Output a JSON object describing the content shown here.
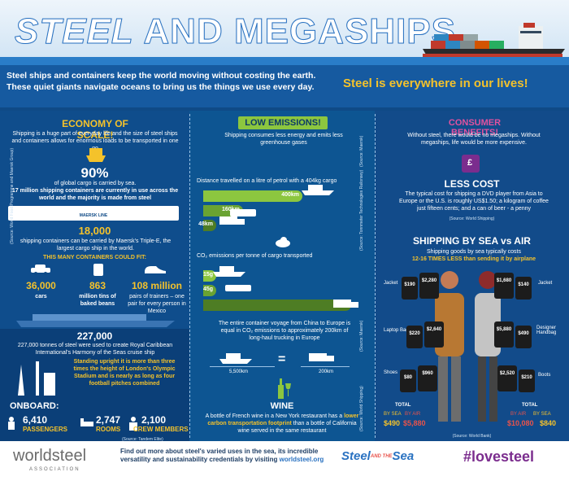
{
  "header": {
    "title_a": "STEEL",
    "title_b": " AND MEGASHIPS"
  },
  "intro": {
    "text": "Steel ships and containers keep the world moving without costing the earth. These quiet giants navigate oceans to bring us the things we use every day.",
    "tagline": "Steel is everywhere in our lives!"
  },
  "economy": {
    "heading": "ECONOMY OF SCALE!",
    "lead": "Shipping is a huge part of everyday life and the size of steel ships and containers allows for enormous loads to be transported in one go",
    "pct": "90%",
    "pct_text_1": "of global cargo is carried by sea.",
    "pct_text_2": "17 million shipping containers are currently in use across the world and the majority is made from steel",
    "source_1": "(Source: World Food Programme and Maersk Group)",
    "ship_label": "MAERSK LINE",
    "containers": "18,000",
    "containers_text": "shipping containers can be carried by Maersk's Triple-E, the largest cargo ship in the world.",
    "fit_heading": "THIS MANY CONTAINERS COULD FIT:",
    "fits": [
      {
        "value": "36,000",
        "label": "cars"
      },
      {
        "value": "863",
        "label": "million tins of baked beans"
      },
      {
        "value": "108 million",
        "label": "pairs of trainers – one pair for every person in Mexico"
      }
    ],
    "tonnes": "227,000",
    "tonnes_text": "227,000 tonnes of steel were used to create Royal Caribbean International's Harmony of the Seas cruise ship",
    "upright": "Standing upright it is more than three times the height of London's Olympic Stadium and is nearly as long as four football pitches combined",
    "onboard_heading": "ONBOARD:",
    "onboard": [
      {
        "value": "6,410",
        "label": "PASSENGERS"
      },
      {
        "value": "2,747",
        "label": "ROOMS"
      },
      {
        "value": "2,100",
        "label": "CREW MEMBERS"
      }
    ],
    "source_2": "(Source: Tandem Elite)"
  },
  "emissions": {
    "heading": "LOW EMISSIONS!",
    "lead": "Shipping consumes less energy and emits less greenhouse gases",
    "distance_title": "Distance travelled on a litre of petrol with a 404kg cargo",
    "distance_bars": [
      {
        "label": "400km",
        "value": 400,
        "color": "#8cc63f"
      },
      {
        "label": "160km",
        "value": 160,
        "color": "#6aa332"
      },
      {
        "label": "48km",
        "value": 48,
        "color": "#4e7d24"
      }
    ],
    "co2_title": "CO₂ emissions per tonne of cargo transported",
    "co2_bars": [
      {
        "label": "15g",
        "value": 15,
        "color": "#8cc63f"
      },
      {
        "label": "45g",
        "value": 45,
        "color": "#6aa332"
      },
      {
        "label": "560g",
        "value": 560,
        "color": "#4e7d24"
      }
    ],
    "voyage_text": "The entire container voyage from China to Europe is equal in CO₂ emissions to approximately 200km of long-haul trucking in Europe",
    "voyage_left": "5,500km",
    "voyage_right": "200km",
    "source_a": "(Source: Maersk)",
    "source_b": "(Source: Tonnmeter Technologies Railonsey)",
    "source_c": "(Source: Maersk)",
    "source_d": "(Source: World Shipping)",
    "wine_heading": "WINE",
    "wine_text_1": "A bottle of French wine in a New York restaurant has a",
    "wine_text_2": "lower carbon transportation footprint",
    "wine_text_3": "than a bottle of California wine served in the same restaurant"
  },
  "consumer": {
    "heading": "CONSUMER BENEFITS!",
    "lead": "Without steel, there would be no megaships. Without megaships, life would be more expensive.",
    "less_cost_heading": "LESS COST",
    "less_cost_text": "The typical cost for shipping a DVD player from Asia to Europe or the U.S. is roughly US$1.50; a kilogram of coffee just fifteen cents; and a can of beer - a penny",
    "less_cost_source": "(Source: World Shipping)",
    "sea_air_heading": "SHIPPING BY SEA vs AIR",
    "sea_air_text_1": "Shipping goods by sea typically costs",
    "sea_air_text_2": "12-16 TIMES LESS than sending it by airplane",
    "items": [
      {
        "name": "Jacket",
        "sea": "$190",
        "air": "$2,280"
      },
      {
        "name": "Laptop Bag",
        "sea": "$220",
        "air": "$2,640"
      },
      {
        "name": "Shoes",
        "sea": "$80",
        "air": "$960"
      },
      {
        "name": "Jacket",
        "sea": "$140",
        "air": "$1,680"
      },
      {
        "name": "Designer Handbag",
        "sea": "$490",
        "air": "$5,880"
      },
      {
        "name": "Boots",
        "sea": "$210",
        "air": "$2,520"
      }
    ],
    "total_label": "TOTAL",
    "by_sea": "BY SEA",
    "by_air": "BY AIR",
    "left_total_sea": "$490",
    "left_total_air": "$5,880",
    "right_total_air": "$10,080",
    "right_total_sea": "$840",
    "source": "(Source: World Bank)"
  },
  "footer": {
    "logo": "worldsteel",
    "logo_sub": "ASSOCIATION",
    "text_1": "Find out more about steel's varied uses in the sea, its incredible versatility and sustainability credentials by visiting",
    "link": "worldsteel.org",
    "steel_sea_a": "Steel",
    "steel_sea_b": "AND THE",
    "steel_sea_c": "Sea",
    "hashtag": "#lovesteel"
  },
  "colors": {
    "accent": "#f4c22b",
    "green": "#8cc63f",
    "navy": "#0f4a86",
    "purple": "#7b2d8e"
  }
}
